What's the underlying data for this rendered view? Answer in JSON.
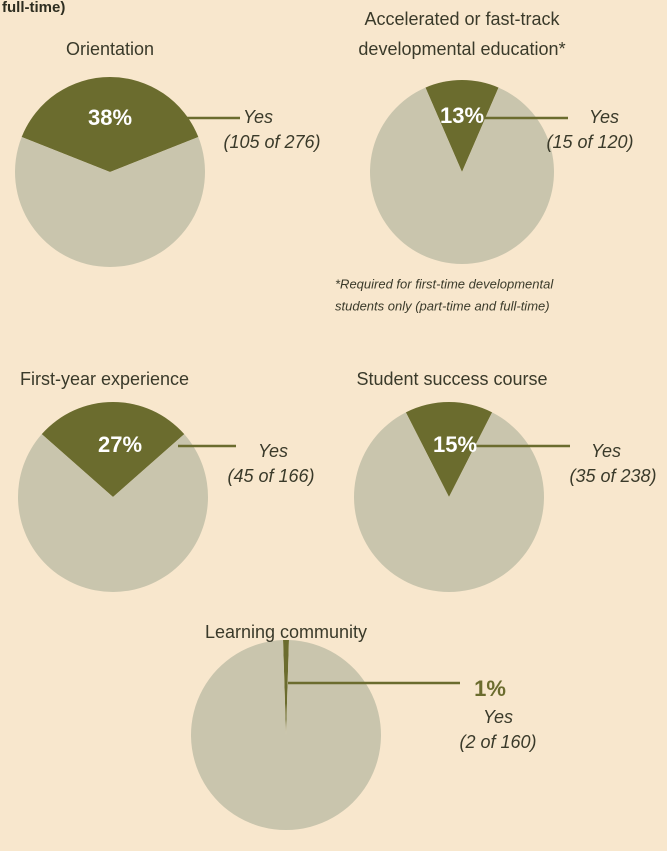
{
  "heading": "full-time)",
  "chart_data": [
    {
      "type": "pie",
      "title": [
        "Orientation"
      ],
      "categories": [
        "Yes",
        null
      ],
      "values": [
        38,
        62
      ],
      "value_labels": [
        "38%",
        null
      ],
      "annotation": "(105 of 276)",
      "colors": [
        "#6b6c2e",
        "#c9c5ad"
      ]
    },
    {
      "type": "pie",
      "title": [
        "Accelerated or fast-track",
        "developmental education*"
      ],
      "categories": [
        "Yes",
        null
      ],
      "values": [
        13,
        87
      ],
      "value_labels": [
        "13%",
        null
      ],
      "annotation": "(15 of 120)",
      "note": [
        "*Required for first-time developmental",
        "students only (part-time and full-time)"
      ],
      "colors": [
        "#6b6c2e",
        "#c9c5ad"
      ]
    },
    {
      "type": "pie",
      "title": [
        "First-year experience"
      ],
      "categories": [
        "Yes",
        null
      ],
      "values": [
        27,
        73
      ],
      "value_labels": [
        "27%",
        null
      ],
      "annotation": "(45 of 166)",
      "colors": [
        "#6b6c2e",
        "#c9c5ad"
      ]
    },
    {
      "type": "pie",
      "title": [
        "Student success course"
      ],
      "categories": [
        "Yes",
        null
      ],
      "values": [
        15,
        85
      ],
      "value_labels": [
        "15%",
        null
      ],
      "annotation": "(35 of 238)",
      "colors": [
        "#6b6c2e",
        "#c9c5ad"
      ]
    },
    {
      "type": "pie",
      "title": [
        "Learning community"
      ],
      "categories": [
        "Yes",
        null
      ],
      "values": [
        1,
        99
      ],
      "value_labels": [
        "1%",
        null
      ],
      "annotation": "(2 of 160)",
      "colors": [
        "#6b6c2e",
        "#c9c5ad"
      ]
    }
  ]
}
